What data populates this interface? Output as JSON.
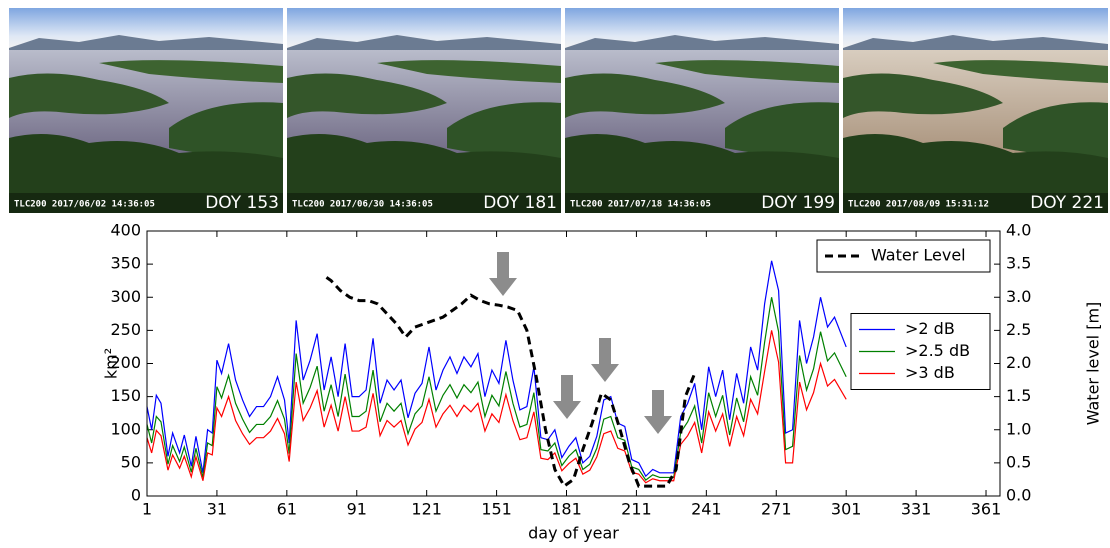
{
  "photos": [
    {
      "stamp": "TLC200 2017/06/02 14:36:05",
      "label": "DOY 153"
    },
    {
      "stamp": "TLC200 2017/06/30 14:36:05",
      "label": "DOY 181"
    },
    {
      "stamp": "TLC200 2017/07/18 14:36:05",
      "label": "DOY 199"
    },
    {
      "stamp": "TLC200 2017/08/09 15:31:12",
      "label": "DOY 221"
    }
  ],
  "chart_data": {
    "type": "line",
    "xlabel": "day of year",
    "ylabel": "km²",
    "y2label": "Water level [m]",
    "xlim": [
      1,
      367
    ],
    "xticks": [
      1,
      31,
      61,
      91,
      121,
      151,
      181,
      211,
      241,
      271,
      301,
      331,
      361
    ],
    "ylim": [
      0,
      400
    ],
    "yticks": [
      0,
      50,
      100,
      150,
      200,
      250,
      300,
      350,
      400
    ],
    "y2lim": [
      0,
      4
    ],
    "y2ticks": [
      {
        "value": 0,
        "label": "0.0"
      },
      0.5,
      {
        "value": 1,
        "label": "1.0"
      },
      1.5,
      {
        "value": 2,
        "label": "2.0"
      },
      2.5,
      {
        "value": 3,
        "label": "3.0"
      },
      3.5,
      {
        "value": 4,
        "label": "4.0"
      }
    ],
    "legend": "center right",
    "legend2": "upper right",
    "grid": false,
    "x": [
      1,
      3,
      5,
      7,
      10,
      12,
      15,
      17,
      20,
      22,
      25,
      27,
      29,
      31,
      33,
      36,
      39,
      42,
      45,
      48,
      51,
      54,
      57,
      60,
      62,
      65,
      68,
      71,
      74,
      77,
      80,
      83,
      86,
      89,
      92,
      95,
      98,
      101,
      104,
      107,
      110,
      113,
      116,
      119,
      122,
      125,
      128,
      131,
      134,
      137,
      140,
      143,
      146,
      149,
      152,
      155,
      158,
      161,
      164,
      167,
      170,
      173,
      176,
      179,
      182,
      185,
      188,
      191,
      194,
      197,
      200,
      203,
      206,
      209,
      212,
      215,
      218,
      221,
      224,
      227,
      230,
      233,
      236,
      239,
      242,
      245,
      248,
      251,
      254,
      257,
      260,
      263,
      266,
      269,
      272,
      275,
      278,
      281,
      284,
      287,
      290,
      293,
      296,
      301
    ],
    "series": [
      {
        "name": ">2 dB",
        "color": "#0000ff",
        "values": [
          135,
          100,
          152,
          140,
          60,
          95,
          65,
          92,
          45,
          90,
          35,
          100,
          95,
          205,
          185,
          230,
          175,
          145,
          120,
          135,
          135,
          150,
          180,
          145,
          80,
          265,
          175,
          205,
          245,
          160,
          210,
          150,
          230,
          150,
          150,
          160,
          238,
          140,
          175,
          160,
          175,
          118,
          155,
          170,
          225,
          160,
          190,
          210,
          185,
          210,
          195,
          215,
          150,
          190,
          170,
          235,
          175,
          130,
          135,
          195,
          88,
          85,
          100,
          58,
          75,
          88,
          50,
          60,
          90,
          145,
          150,
          110,
          105,
          55,
          50,
          30,
          40,
          35,
          35,
          35,
          120,
          140,
          170,
          100,
          195,
          150,
          190,
          115,
          185,
          140,
          225,
          190,
          290,
          355,
          310,
          95,
          100,
          265,
          200,
          240,
          300,
          255,
          270,
          225
        ]
      },
      {
        "name": ">2.5 dB",
        "color": "#008000",
        "values": [
          108,
          80,
          120,
          112,
          48,
          76,
          52,
          74,
          36,
          72,
          28,
          80,
          76,
          165,
          148,
          182,
          140,
          116,
          96,
          108,
          108,
          120,
          144,
          116,
          64,
          215,
          140,
          164,
          196,
          128,
          168,
          120,
          184,
          120,
          120,
          128,
          190,
          112,
          140,
          128,
          140,
          94,
          124,
          136,
          180,
          128,
          152,
          168,
          148,
          168,
          156,
          172,
          120,
          152,
          136,
          188,
          140,
          104,
          108,
          156,
          70,
          68,
          80,
          46,
          60,
          70,
          40,
          48,
          72,
          116,
          120,
          88,
          84,
          44,
          40,
          24,
          32,
          28,
          28,
          28,
          96,
          112,
          136,
          80,
          156,
          120,
          152,
          92,
          148,
          112,
          180,
          152,
          232,
          300,
          248,
          70,
          75,
          212,
          160,
          192,
          248,
          204,
          216,
          180
        ]
      },
      {
        "name": ">3 dB",
        "color": "#ff0000",
        "values": [
          88,
          65,
          99,
          91,
          39,
          62,
          42,
          60,
          29,
          59,
          23,
          65,
          62,
          133,
          120,
          150,
          114,
          94,
          78,
          88,
          88,
          98,
          117,
          94,
          52,
          172,
          114,
          133,
          159,
          104,
          137,
          98,
          150,
          98,
          98,
          104,
          155,
          91,
          114,
          104,
          114,
          77,
          101,
          111,
          146,
          104,
          124,
          137,
          120,
          137,
          127,
          140,
          98,
          124,
          111,
          153,
          114,
          85,
          88,
          127,
          57,
          55,
          65,
          38,
          49,
          57,
          33,
          39,
          59,
          94,
          98,
          72,
          68,
          36,
          33,
          20,
          26,
          23,
          23,
          23,
          78,
          91,
          111,
          65,
          127,
          98,
          124,
          75,
          120,
          91,
          146,
          124,
          188,
          250,
          202,
          50,
          50,
          172,
          130,
          156,
          200,
          166,
          176,
          146
        ]
      },
      {
        "name": "Water Level",
        "color": "#000000",
        "axis": "y2",
        "dashed": true,
        "x": [
          78,
          80,
          84,
          88,
          92,
          96,
          100,
          104,
          108,
          112,
          116,
          120,
          124,
          128,
          132,
          136,
          140,
          144,
          148,
          152,
          156,
          160,
          164,
          168,
          172,
          176,
          180,
          184,
          188,
          192,
          196,
          200,
          204,
          208,
          212,
          216,
          220,
          224,
          228,
          232,
          236
        ],
        "values": [
          3.3,
          3.25,
          3.1,
          3.0,
          2.95,
          2.95,
          2.9,
          2.75,
          2.6,
          2.4,
          2.55,
          2.6,
          2.65,
          2.7,
          2.8,
          2.9,
          3.03,
          2.95,
          2.9,
          2.88,
          2.85,
          2.8,
          2.5,
          1.8,
          1.0,
          0.4,
          0.15,
          0.25,
          0.7,
          1.1,
          1.55,
          1.45,
          1.0,
          0.5,
          0.15,
          0.15,
          0.15,
          0.15,
          0.4,
          1.5,
          1.85
        ]
      }
    ]
  }
}
